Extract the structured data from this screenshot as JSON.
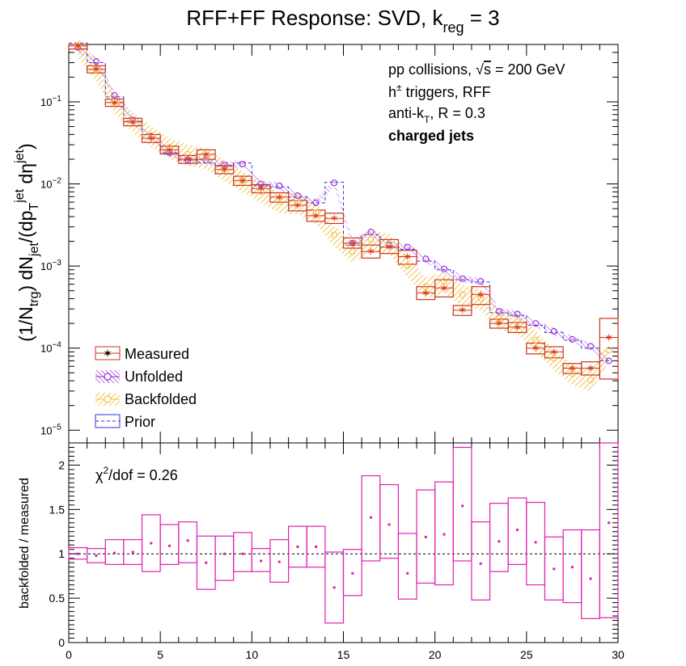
{
  "chart_data": [
    {
      "type": "scatter",
      "title": "RFF+FF Response: SVD, k_reg = 3",
      "title_parts": {
        "main": "RFF+FF Response: SVD, k",
        "sub": "reg",
        "tail": " = 3"
      },
      "ylabel_text": "(1/N_trg) dN_jet/(dp_T^jet dη^jet)",
      "ylabel_parts": {
        "a": "(1/N",
        "a_sub": "trg",
        "b": ") dN",
        "b_sub": "jet",
        "c": "/(dp",
        "c_sub": "T",
        "c_sup": "jet",
        "d": " dη",
        "d_sup": "jet",
        "e": ")"
      },
      "y_scale": "log",
      "xlim": [
        0,
        30
      ],
      "ylim": [
        7e-06,
        0.5
      ],
      "y_tick_labels": [
        {
          "base": "10",
          "exp": "−1",
          "value": 0.1
        },
        {
          "base": "10",
          "exp": "−2",
          "value": 0.01
        },
        {
          "base": "10",
          "exp": "−3",
          "value": 0.001
        },
        {
          "base": "10",
          "exp": "−4",
          "value": 0.0001
        },
        {
          "base": "10",
          "exp": "−5",
          "value": 1e-05
        }
      ],
      "annotations": {
        "line1_pre": "pp collisions, ",
        "line1_sqrt": "√",
        "line1_s": "s",
        "line1_post": " = 200 GeV",
        "line2_pre": "h",
        "line2_sup": "±",
        "line2_post": " triggers, RFF",
        "line3_pre": "anti-k",
        "line3_sub": "T",
        "line3_post": ", R = 0.3",
        "line4": "charged jets"
      },
      "legend": {
        "placement": "bottom-left",
        "entries": [
          "Measured",
          "Unfolded",
          "Backfolded",
          "Prior"
        ]
      },
      "colors": {
        "measured": "#e8401a",
        "measured_box": "#c8351a",
        "unfolded": "#9a30d8",
        "backfolded": "#f3c14e",
        "prior": "#3a2ce0"
      },
      "bins": [
        [
          0,
          1
        ],
        [
          1,
          2
        ],
        [
          2,
          3
        ],
        [
          3,
          4
        ],
        [
          4,
          5
        ],
        [
          5,
          6
        ],
        [
          6,
          7
        ],
        [
          7,
          8
        ],
        [
          8,
          9
        ],
        [
          9,
          10
        ],
        [
          10,
          11
        ],
        [
          11,
          12
        ],
        [
          12,
          13
        ],
        [
          13,
          14
        ],
        [
          14,
          15
        ],
        [
          15,
          16
        ],
        [
          16,
          17
        ],
        [
          17,
          18
        ],
        [
          18,
          19
        ],
        [
          19,
          20
        ],
        [
          20,
          21
        ],
        [
          21,
          22
        ],
        [
          22,
          23
        ],
        [
          23,
          24
        ],
        [
          24,
          25
        ],
        [
          25,
          26
        ],
        [
          26,
          27
        ],
        [
          27,
          28
        ],
        [
          28,
          29
        ],
        [
          29,
          30
        ]
      ],
      "series": [
        {
          "name": "Measured",
          "marker": "star",
          "x": [
            0.5,
            1.5,
            2.5,
            3.5,
            4.5,
            5.5,
            6.5,
            7.5,
            8.5,
            9.5,
            10.5,
            11.5,
            12.5,
            13.5,
            14.5,
            15.5,
            16.5,
            17.5,
            18.5,
            19.5,
            20.5,
            21.5,
            22.5,
            23.5,
            24.5,
            25.5,
            26.5,
            27.5,
            28.5,
            29.5
          ],
          "y": [
            0.48,
            0.25,
            0.098,
            0.057,
            0.036,
            0.026,
            0.02,
            0.023,
            0.015,
            0.011,
            0.0088,
            0.0069,
            0.0055,
            0.0041,
            0.0038,
            0.0019,
            0.0015,
            0.0017,
            0.0013,
            0.00047,
            0.00054,
            0.00029,
            0.00045,
            0.0002,
            0.00018,
            0.0001,
            9e-05,
            5.7e-05,
            5.7e-05,
            0.000135
          ],
          "box_low": [
            0.44,
            0.225,
            0.088,
            0.051,
            0.032,
            0.0232,
            0.0178,
            0.0199,
            0.0133,
            0.0096,
            0.0078,
            0.006,
            0.0047,
            0.0035,
            0.0033,
            0.00165,
            0.00125,
            0.00142,
            0.00105,
            0.00039,
            0.00042,
            0.00025,
            0.00034,
            0.000175,
            0.000155,
            8.5e-05,
            7.6e-05,
            4.9e-05,
            4.7e-05,
            4.2e-05
          ],
          "box_high": [
            0.52,
            0.275,
            0.108,
            0.063,
            0.04,
            0.0288,
            0.0222,
            0.026,
            0.0167,
            0.0124,
            0.0098,
            0.0078,
            0.0063,
            0.0048,
            0.0044,
            0.0022,
            0.0018,
            0.0021,
            0.00155,
            0.00056,
            0.00068,
            0.00033,
            0.00056,
            0.000225,
            0.000205,
            0.000115,
            0.000104,
            6.5e-05,
            6.8e-05,
            0.00023
          ]
        },
        {
          "name": "Unfolded",
          "marker": "open-circle",
          "x": [
            0.5,
            1.5,
            2.5,
            3.5,
            4.5,
            5.5,
            6.5,
            7.5,
            8.5,
            9.5,
            10.5,
            11.5,
            12.5,
            13.5,
            14.5,
            15.5,
            16.5,
            17.5,
            18.5,
            19.5,
            20.5,
            21.5,
            22.5,
            23.5,
            24.5,
            25.5,
            26.5,
            27.5,
            28.5,
            29.5
          ],
          "y": [
            0.46,
            0.31,
            0.12,
            0.06,
            0.038,
            0.024,
            0.0195,
            0.0195,
            0.017,
            0.0175,
            0.01,
            0.0095,
            0.0072,
            0.0059,
            0.0103,
            0.0019,
            0.0026,
            0.0018,
            0.0017,
            0.00122,
            0.00092,
            0.0007,
            0.00065,
            0.00028,
            0.00026,
            0.0002,
            0.00016,
            0.000128,
            0.000105,
            7e-05
          ]
        },
        {
          "name": "Backfolded",
          "marker": "open-circle",
          "x": [
            0.5,
            1.5,
            2.5,
            3.5,
            4.5,
            5.5,
            6.5,
            7.5,
            8.5,
            9.5,
            10.5,
            11.5,
            12.5,
            13.5,
            14.5,
            15.5,
            16.5,
            17.5,
            18.5,
            19.5,
            20.5,
            21.5,
            22.5,
            23.5,
            24.5,
            25.5,
            26.5,
            27.5,
            28.5,
            29.5
          ],
          "y": [
            0.48,
            0.245,
            0.1,
            0.058,
            0.039,
            0.028,
            0.023,
            0.021,
            0.015,
            0.011,
            0.0081,
            0.0061,
            0.0059,
            0.0045,
            0.0024,
            0.0015,
            0.0021,
            0.0019,
            0.00101,
            0.00056,
            0.00065,
            0.00045,
            0.0004,
            0.00023,
            0.00021,
            0.000125,
            7.5e-05,
            4.9e-05,
            4.1e-05,
            9.5e-05
          ]
        },
        {
          "name": "Prior",
          "line": "dashed",
          "y": [
            0.52,
            0.3,
            0.115,
            0.058,
            0.036,
            0.024,
            0.0195,
            0.018,
            0.0165,
            0.018,
            0.0095,
            0.0092,
            0.0069,
            0.0059,
            0.0105,
            0.0018,
            0.0024,
            0.0017,
            0.0016,
            0.00115,
            0.0009,
            0.00068,
            0.00064,
            0.00027,
            0.00025,
            0.00019,
            0.000155,
            0.000125,
            0.0001,
            7e-05
          ]
        }
      ]
    },
    {
      "type": "scatter",
      "xlabel": "",
      "ylabel": "backfolded / measured",
      "xlim": [
        0,
        30
      ],
      "ylim": [
        0,
        2.25
      ],
      "x_tick_labels": [
        "0",
        "5",
        "10",
        "15",
        "20",
        "25",
        "30"
      ],
      "y_tick_labels": [
        "0",
        "0.5",
        "1",
        "1.5",
        "2"
      ],
      "annotation": {
        "chi": "χ",
        "sup": "2",
        "rest": "/dof = 0.26"
      },
      "reference_line": 1,
      "colors": {
        "ratio": "#e020b0",
        "reference": "#000000"
      },
      "series": [
        {
          "name": "",
          "x": [
            0.5,
            1.5,
            2.5,
            3.5,
            4.5,
            5.5,
            6.5,
            7.5,
            8.5,
            9.5,
            10.5,
            11.5,
            12.5,
            13.5,
            14.5,
            15.5,
            16.5,
            17.5,
            18.5,
            19.5,
            20.5,
            21.5,
            22.5,
            23.5,
            24.5,
            25.5,
            26.5,
            27.5,
            28.5,
            29.5
          ],
          "y": [
            1.0,
            0.98,
            1.01,
            1.02,
            1.12,
            1.09,
            1.15,
            0.9,
            1.0,
            1.0,
            0.92,
            0.91,
            1.08,
            1.08,
            0.62,
            0.78,
            1.41,
            1.33,
            0.78,
            1.19,
            1.22,
            1.54,
            0.89,
            1.14,
            1.27,
            1.13,
            0.83,
            0.85,
            0.72,
            1.35
          ],
          "box_low": [
            0.94,
            0.9,
            0.88,
            0.88,
            0.8,
            0.88,
            0.9,
            0.6,
            0.7,
            0.8,
            0.8,
            0.68,
            0.85,
            0.85,
            0.22,
            0.53,
            0.92,
            0.95,
            0.49,
            0.67,
            0.65,
            0.92,
            0.48,
            0.8,
            0.88,
            0.65,
            0.48,
            0.45,
            0.27,
            0.28
          ],
          "box_high": [
            1.07,
            1.06,
            1.16,
            1.16,
            1.44,
            1.33,
            1.36,
            1.2,
            1.2,
            1.24,
            1.06,
            1.16,
            1.31,
            1.31,
            1.02,
            1.05,
            1.88,
            1.78,
            1.23,
            1.72,
            1.81,
            2.2,
            1.36,
            1.57,
            1.63,
            1.58,
            1.19,
            1.27,
            1.27,
            2.3
          ]
        }
      ]
    }
  ]
}
